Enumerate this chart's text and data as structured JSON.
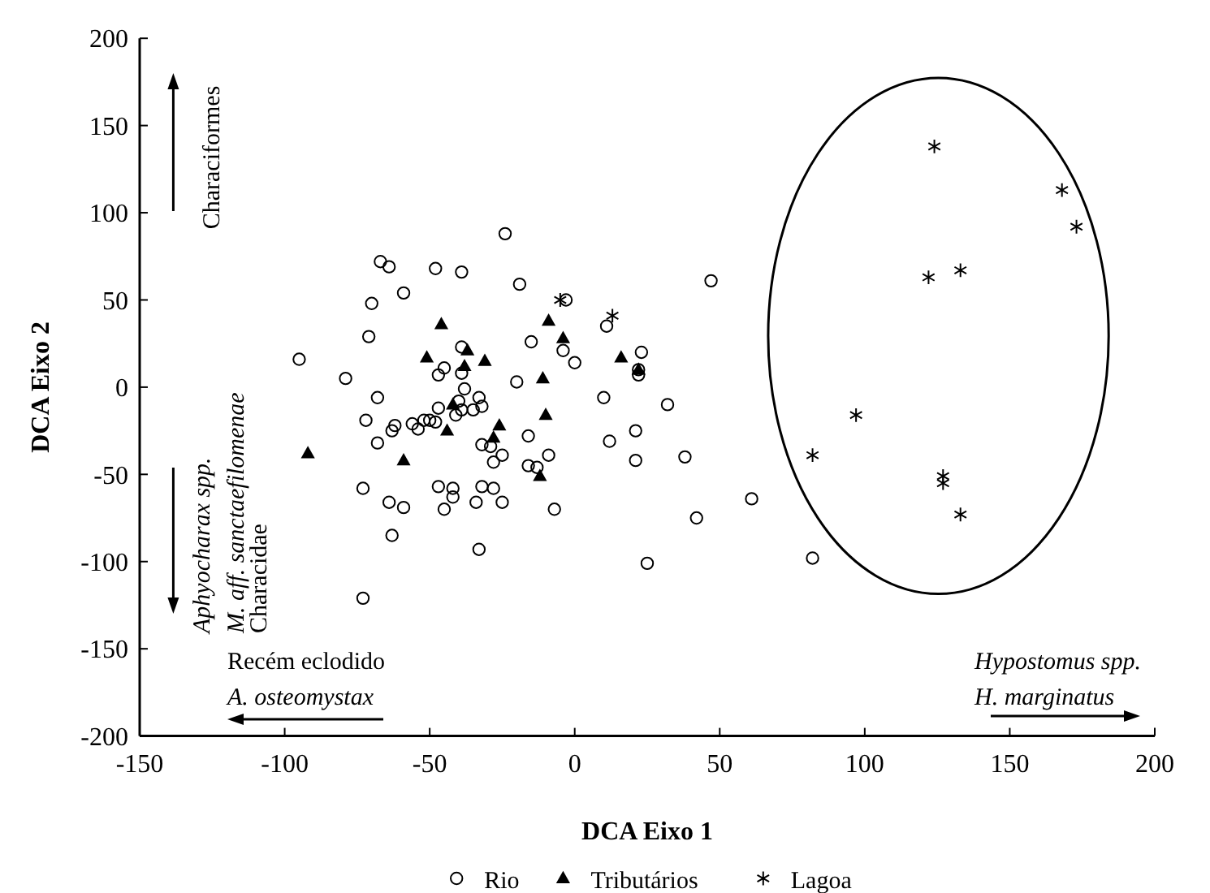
{
  "chart_data": {
    "type": "scatter",
    "xlabel": "DCA Eixo 1",
    "ylabel": "DCA Eixo 2",
    "xlim": [
      -150,
      200
    ],
    "ylim": [
      -200,
      200
    ],
    "xticks": [
      -150,
      -100,
      -50,
      0,
      50,
      100,
      150,
      200
    ],
    "yticks": [
      -200,
      -150,
      -100,
      -50,
      0,
      50,
      100,
      150,
      200
    ],
    "legend": "bottom",
    "annotations": [
      "Characiformes",
      "Aphyocharax spp.",
      "M. aff. sanctaefilomenae",
      "Characidae",
      "Recém eclodido",
      "A. osteomystax",
      "Hypostomus spp.",
      "H. marginatus"
    ],
    "series": [
      {
        "name": "Rio",
        "color": "#000000",
        "marker": "circle",
        "x": [
          -24,
          -67,
          -64,
          -48,
          -39,
          -19,
          -59,
          -70,
          -71,
          -15,
          -95,
          -39,
          -45,
          -47,
          -39,
          -79,
          -20,
          -38,
          -68,
          -33,
          -40,
          -32,
          -47,
          -39,
          -35,
          -72,
          -62,
          -63,
          -56,
          -52,
          -50,
          -48,
          -54,
          -41,
          -68,
          -32,
          -29,
          -25,
          -28,
          -73,
          -47,
          -42,
          -42,
          -64,
          -59,
          -45,
          -32,
          -28,
          -34,
          -25,
          -63,
          -33,
          -73,
          -3,
          47,
          11,
          -4,
          0,
          23,
          22,
          22,
          10,
          32,
          -16,
          -9,
          -16,
          -13,
          12,
          21,
          21,
          38,
          -7,
          42,
          61,
          25,
          82
        ],
        "values": [
          88,
          72,
          69,
          68,
          66,
          59,
          54,
          48,
          29,
          26,
          16,
          23,
          11,
          7,
          8,
          5,
          3,
          -1,
          -6,
          -6,
          -8,
          -11,
          -12,
          -13,
          -13,
          -19,
          -22,
          -25,
          -21,
          -19,
          -19,
          -20,
          -24,
          -16,
          -32,
          -33,
          -34,
          -39,
          -43,
          -58,
          -57,
          -58,
          -63,
          -66,
          -69,
          -70,
          -57,
          -58,
          -66,
          -66,
          -85,
          -93,
          -121,
          50,
          61,
          35,
          21,
          14,
          20,
          10,
          7,
          -6,
          -10,
          -28,
          -39,
          -45,
          -46,
          -31,
          -25,
          -42,
          -40,
          -70,
          -75,
          -64,
          -101,
          -98
        ]
      },
      {
        "name": "Tributários",
        "color": "#000000",
        "marker": "triangle",
        "x": [
          -46,
          -51,
          -37,
          -31,
          -38,
          -42,
          -44,
          -26,
          -28,
          -92,
          -59,
          -9,
          -4,
          16,
          -11,
          -10,
          -12,
          22
        ],
        "values": [
          36,
          17,
          21,
          15,
          12,
          -10,
          -25,
          -22,
          -29,
          -38,
          -42,
          38,
          28,
          17,
          5,
          -16,
          -51,
          10
        ]
      },
      {
        "name": "Lagoa",
        "color": "#000000",
        "marker": "cross",
        "x": [
          -5,
          13,
          124,
          168,
          173,
          122,
          133,
          97,
          82,
          127,
          127,
          133
        ],
        "values": [
          50,
          41,
          138,
          113,
          92,
          63,
          67,
          -16,
          -39,
          -51,
          -55,
          -73
        ]
      }
    ]
  }
}
